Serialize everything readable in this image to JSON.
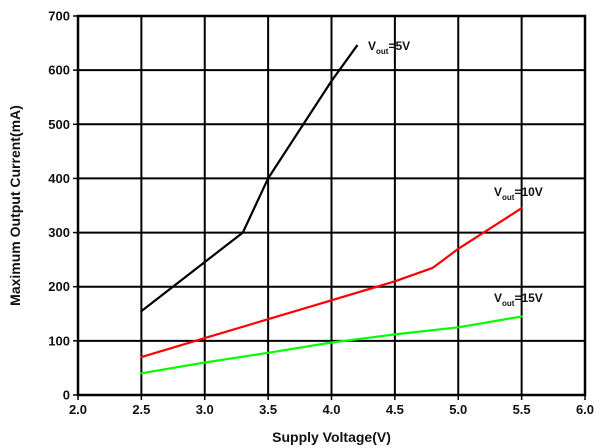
{
  "chart_data": {
    "type": "line",
    "xlabel": "Supply Voltage(V)",
    "ylabel": "Maximum Output Current(mA)",
    "xlim": [
      2.0,
      6.0
    ],
    "ylim": [
      0,
      700
    ],
    "x_ticks": [
      "2.0",
      "2.5",
      "3.0",
      "3.5",
      "4.0",
      "4.5",
      "5.0",
      "5.5",
      "6.0"
    ],
    "y_ticks": [
      "0",
      "100",
      "200",
      "300",
      "400",
      "500",
      "600",
      "700"
    ],
    "grid": true,
    "series": [
      {
        "name": "Vout=5V",
        "label_main": "V",
        "label_sub": "out",
        "label_tail": "=5V",
        "color": "#000000",
        "x": [
          2.5,
          3.3,
          3.5,
          4.0,
          4.2
        ],
        "y": [
          155,
          300,
          400,
          580,
          645
        ]
      },
      {
        "name": "Vout=10V",
        "label_main": "V",
        "label_sub": "out",
        "label_tail": "=10V",
        "color": "#ff0000",
        "x": [
          2.5,
          3.0,
          3.5,
          4.0,
          4.5,
          4.8,
          5.0,
          5.5
        ],
        "y": [
          70,
          105,
          140,
          175,
          210,
          235,
          270,
          345
        ]
      },
      {
        "name": "Vout=15V",
        "label_main": "V",
        "label_sub": "out",
        "label_tail": "=15V",
        "color": "#00ff00",
        "x": [
          2.5,
          3.0,
          3.5,
          4.0,
          4.5,
          5.0,
          5.5
        ],
        "y": [
          40,
          60,
          78,
          97,
          112,
          125,
          145
        ]
      }
    ]
  }
}
